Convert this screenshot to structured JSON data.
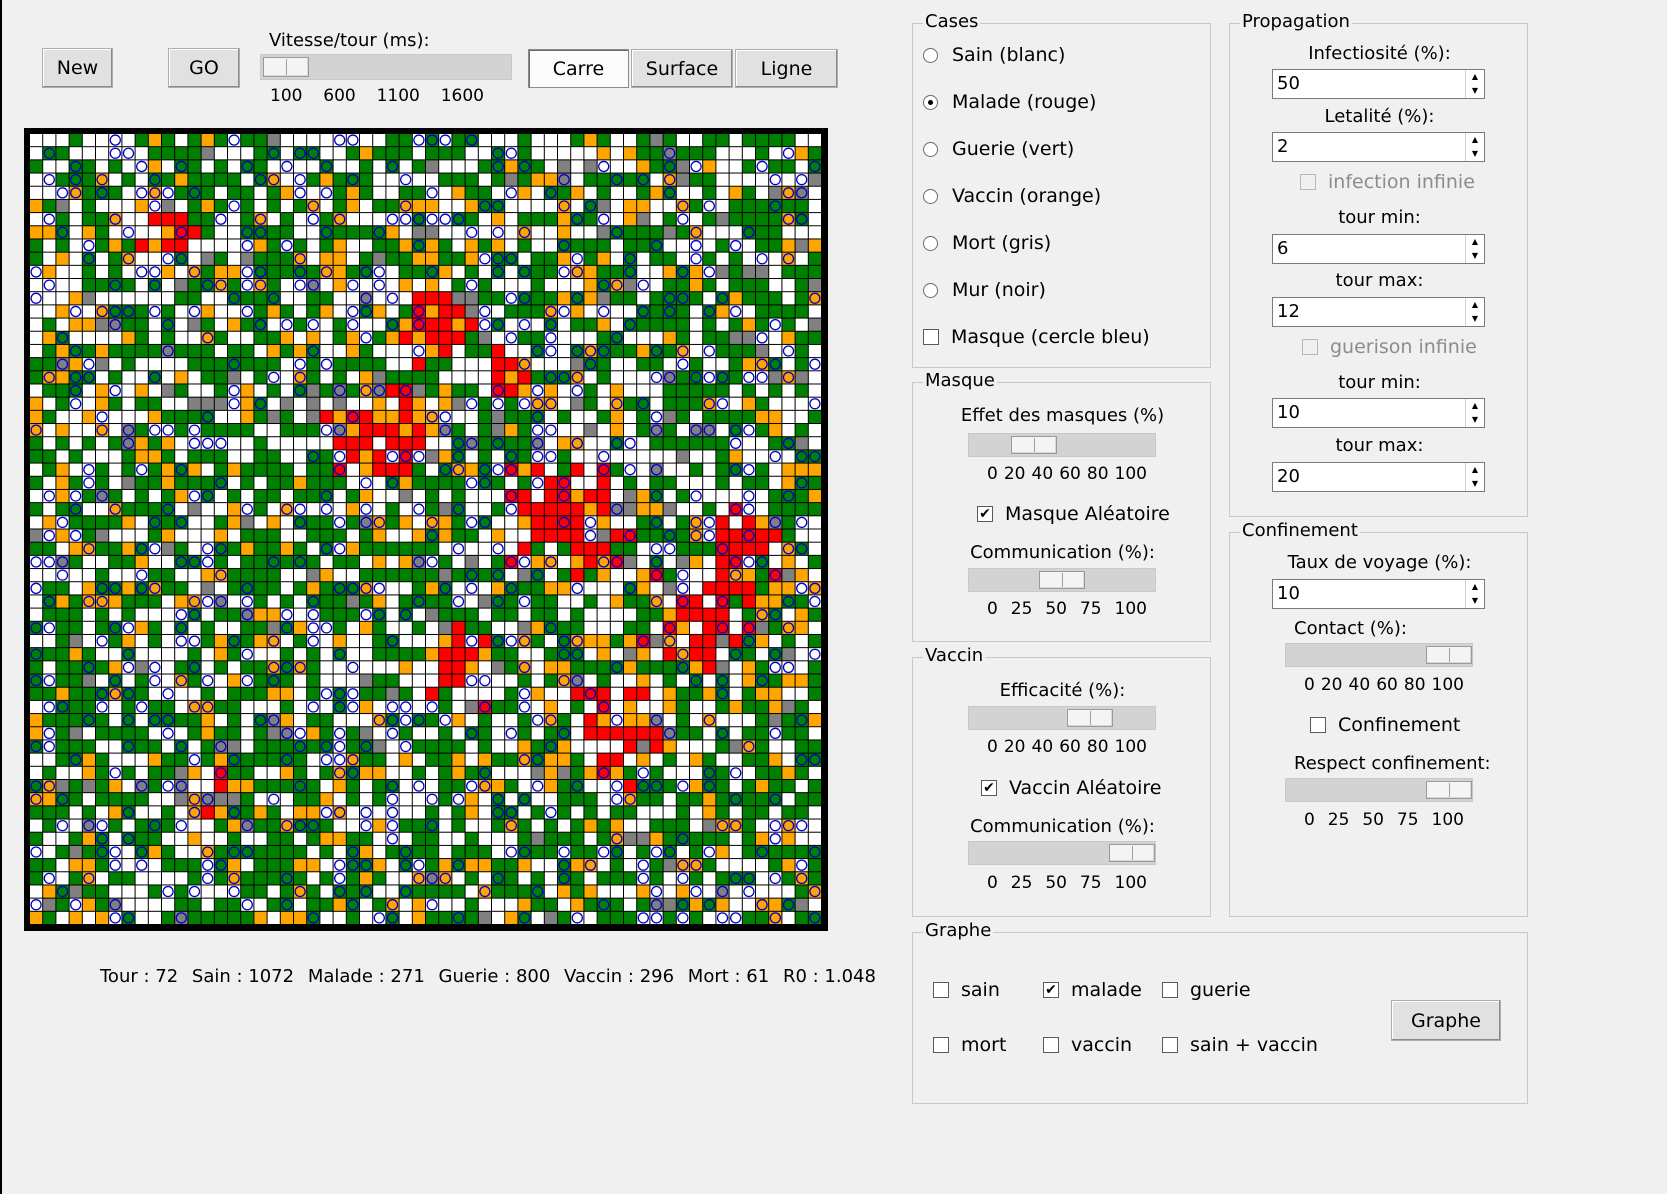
{
  "toolbar": {
    "new_label": "New",
    "go_label": "GO",
    "speed_label": "Vitesse/tour (ms):",
    "speed_ticks": [
      "100",
      "600",
      "1100",
      "1600"
    ],
    "speed_value": 100,
    "view_buttons": [
      {
        "label": "Carre",
        "selected": true
      },
      {
        "label": "Surface",
        "selected": false
      },
      {
        "label": "Ligne",
        "selected": false
      }
    ]
  },
  "status": {
    "tour": "Tour : 72",
    "sain": "Sain : 1072",
    "malade": "Malade : 271",
    "guerie": "Guerie : 800",
    "vaccin": "Vaccin : 296",
    "mort": "Mort : 61",
    "r0": "R0 : 1.048"
  },
  "cases": {
    "title": "Cases",
    "options": [
      {
        "label": "Sain (blanc)",
        "selected": false
      },
      {
        "label": "Malade (rouge)",
        "selected": true
      },
      {
        "label": "Guerie (vert)",
        "selected": false
      },
      {
        "label": "Vaccin (orange)",
        "selected": false
      },
      {
        "label": "Mort (gris)",
        "selected": false
      },
      {
        "label": "Mur (noir)",
        "selected": false
      }
    ],
    "masque_label": "Masque (cercle bleu)",
    "masque_checked": false
  },
  "masque": {
    "title": "Masque",
    "effet_label": "Effet des masques (%)",
    "effet_ticks": [
      "0",
      "20",
      "40",
      "60",
      "80",
      "100"
    ],
    "effet_value": 30,
    "aleatoire_label": "Masque Aléatoire",
    "aleatoire_checked": true,
    "comm_label": "Communication (%):",
    "comm_ticks": [
      "0",
      "25",
      "50",
      "75",
      "100"
    ],
    "comm_value": 50
  },
  "vaccin": {
    "title": "Vaccin",
    "efficacite_label": "Efficacité (%):",
    "efficacite_ticks": [
      "0",
      "20",
      "40",
      "60",
      "80",
      "100"
    ],
    "efficacite_value": 70,
    "aleatoire_label": "Vaccin Aléatoire",
    "aleatoire_checked": true,
    "comm_label": "Communication (%):",
    "comm_ticks": [
      "0",
      "25",
      "50",
      "75",
      "100"
    ],
    "comm_value": 100
  },
  "propagation": {
    "title": "Propagation",
    "infectiosite_label": "Infectiosité (%):",
    "infectiosite_value": "50",
    "letalite_label": "Letalité (%):",
    "letalite_value": "2",
    "infection_infinie_label": "infection infinie",
    "infection_tour_min_label": "tour min:",
    "infection_tour_min_value": "6",
    "infection_tour_max_label": "tour max:",
    "infection_tour_max_value": "12",
    "guerison_infinie_label": "guerison infinie",
    "guerison_tour_min_label": "tour min:",
    "guerison_tour_min_value": "10",
    "guerison_tour_max_label": "tour max:",
    "guerison_tour_max_value": "20"
  },
  "confinement": {
    "title": "Confinement",
    "voyage_label": "Taux de voyage (%):",
    "voyage_value": "10",
    "contact_label": "Contact (%):",
    "contact_ticks": [
      "0",
      "20",
      "40",
      "60",
      "80",
      "100"
    ],
    "contact_value": 90,
    "confinement_label": "Confinement",
    "confinement_checked": false,
    "respect_label": "Respect confinement:",
    "respect_ticks": [
      "0",
      "25",
      "50",
      "75",
      "100"
    ],
    "respect_value": 90
  },
  "graphe": {
    "title": "Graphe",
    "options": [
      {
        "label": "sain",
        "checked": false
      },
      {
        "label": "malade",
        "checked": true
      },
      {
        "label": "guerie",
        "checked": false
      },
      {
        "label": "mort",
        "checked": false
      },
      {
        "label": "vaccin",
        "checked": false
      },
      {
        "label": "sain + vaccin",
        "checked": false
      }
    ],
    "button_label": "Graphe"
  },
  "colors": {
    "sain": "#ffffff",
    "malade": "#ff0000",
    "guerie": "#008000",
    "vaccin": "#ffa500",
    "mort": "#808080",
    "mur": "#000000",
    "masque": "#0000cc"
  },
  "grid_size": 60
}
